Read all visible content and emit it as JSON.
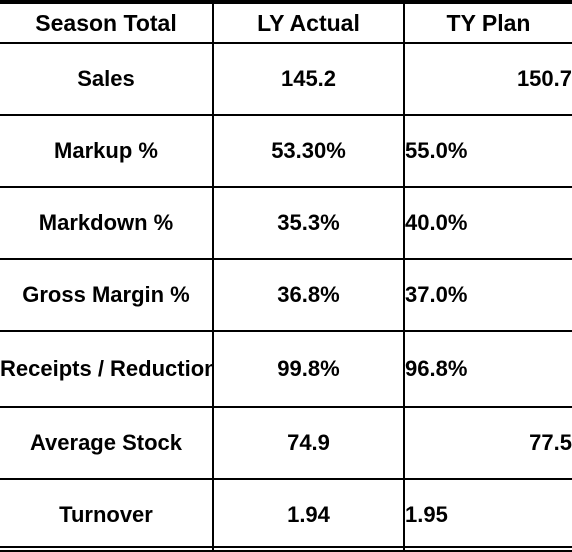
{
  "table": {
    "headers": [
      "Season Total",
      "LY Actual",
      "TY Plan"
    ],
    "rows": [
      {
        "label": "Sales",
        "ly": "145.2",
        "ty": "150.7"
      },
      {
        "label": "Markup %",
        "ly": "53.30%",
        "ty": "55.0%"
      },
      {
        "label": "Markdown %",
        "ly": "35.3%",
        "ty": "40.0%"
      },
      {
        "label": "Gross Margin %",
        "ly": "36.8%",
        "ty": "37.0%"
      },
      {
        "label": "Receipts / Reductions",
        "ly": "99.8%",
        "ty": "96.8%"
      },
      {
        "label": "Average Stock",
        "ly": "74.9",
        "ty": "77.5"
      },
      {
        "label": "Turnover",
        "ly": "1.94",
        "ty": "1.95"
      }
    ]
  }
}
